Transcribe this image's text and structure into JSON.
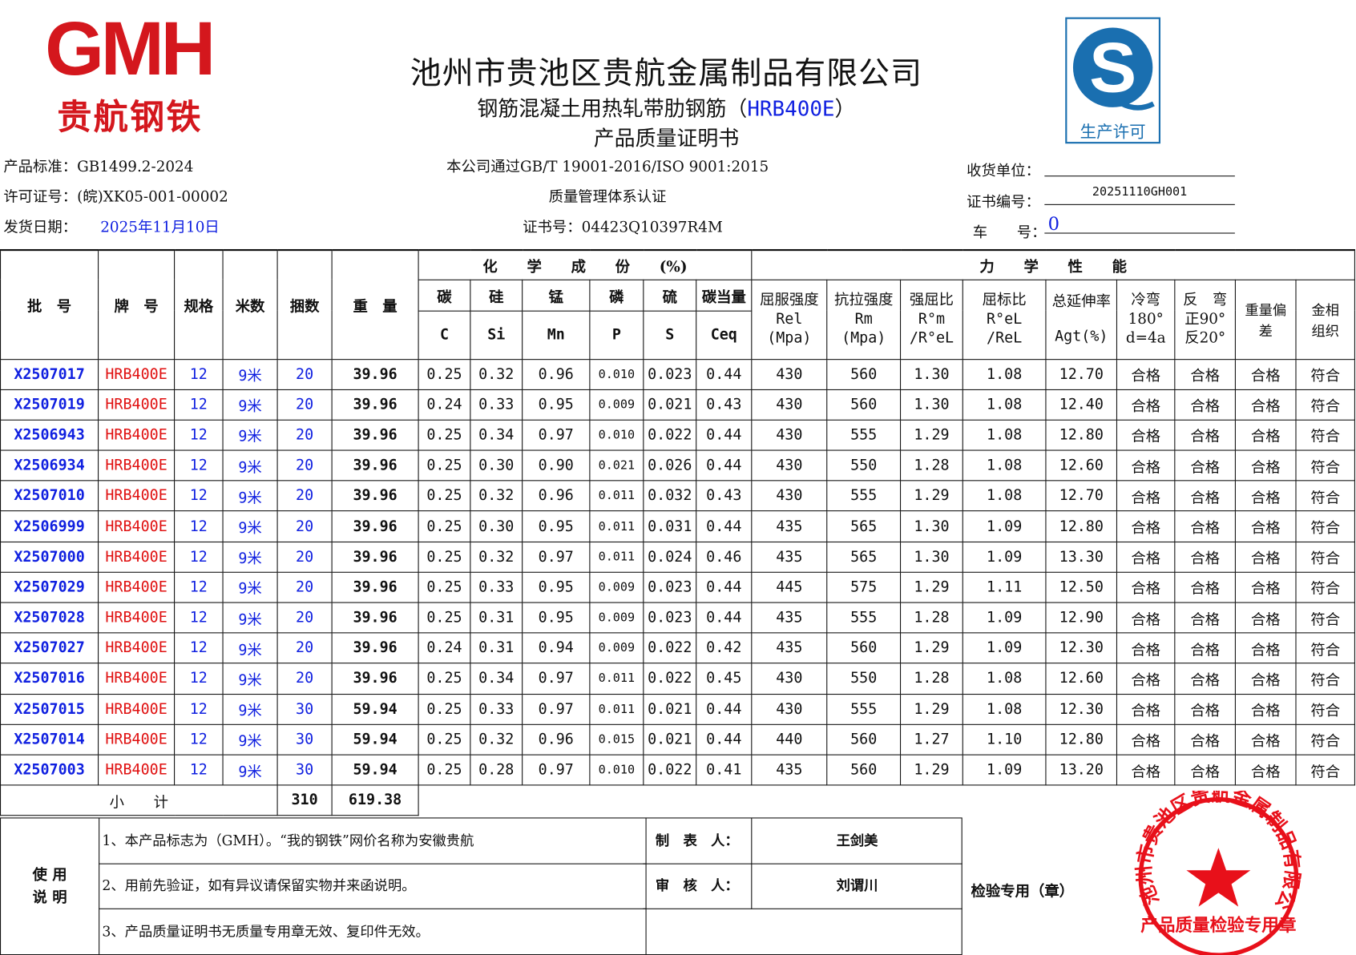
{
  "logo": {
    "letters": "GMH",
    "name": "贵航钢铁"
  },
  "header": {
    "company": "池州市贵池区贵航金属制品有限公司",
    "product_prefix": "钢筋混凝土用热轧带肋钢筋（",
    "grade": "HRB400E",
    "product_suffix": "）",
    "doc_title": "产品质量证明书"
  },
  "license_badge": {
    "label": "生产许可"
  },
  "info": {
    "standard": "产品标准：GB1499.2-2024",
    "license": "许可证号：(皖)XK05-001-00002",
    "ship_label": "发货日期：",
    "ship_date": "2025年11月10日",
    "cert_line1": "本公司通过GB/T 19001-2016/ISO 9001:2015",
    "cert_line2": "质量管理体系认证",
    "cert_no": "证书号：04423Q10397R4M",
    "consignee_label": "收货单位：",
    "consignee": "",
    "cert_code_label": "证书编号：",
    "cert_code": "20251110GH001",
    "vehicle_label": "车　　号：",
    "vehicle": "0"
  },
  "table": {
    "h": {
      "batch": "批　号",
      "brand": "牌　号",
      "spec": "规格",
      "length": "米数",
      "bundles": "捆数",
      "weight": "重　量",
      "chem": "化　　学　　成　　份　　(%)",
      "mech": "力　　学　　性　　能",
      "c": "碳",
      "si": "硅",
      "mn": "锰",
      "p": "磷",
      "s": "硫",
      "ceq": "碳当量",
      "c2": "C",
      "si2": "Si",
      "mn2": "Mn",
      "p2": "P",
      "s2": "S",
      "ceq2": "Ceq",
      "rel": "屈服强度",
      "rel2": "Rel",
      "rel3": "(Mpa)",
      "rm": "抗拉强度",
      "rm2": "Rm",
      "rm3": "(Mpa)",
      "ratio": "强屈比",
      "ratio2": "R°m",
      "ratio3": "/R°eL",
      "yr": "屈标比",
      "yr2": "R°eL",
      "yr3": "/ReL",
      "agt": "总延伸率",
      "agt2": "Agt(%)",
      "bend": "冷弯",
      "bend2": "180°",
      "bend3": "d=4a",
      "rbend": "反　弯",
      "rbend2": "正90°",
      "rbend3": "反20°",
      "wdev": "重量偏差",
      "micro": "金相组织"
    },
    "rows": [
      [
        "X2507017",
        "HRB400E",
        "12",
        "9米",
        "20",
        "39.96",
        "0.25",
        "0.32",
        "0.96",
        "0.010",
        "0.023",
        "0.44",
        "430",
        "560",
        "1.30",
        "1.08",
        "12.70",
        "合格",
        "合格",
        "合格",
        "符合"
      ],
      [
        "X2507019",
        "HRB400E",
        "12",
        "9米",
        "20",
        "39.96",
        "0.24",
        "0.33",
        "0.95",
        "0.009",
        "0.021",
        "0.43",
        "430",
        "560",
        "1.30",
        "1.08",
        "12.40",
        "合格",
        "合格",
        "合格",
        "符合"
      ],
      [
        "X2506943",
        "HRB400E",
        "12",
        "9米",
        "20",
        "39.96",
        "0.25",
        "0.34",
        "0.97",
        "0.010",
        "0.022",
        "0.44",
        "430",
        "555",
        "1.29",
        "1.08",
        "12.80",
        "合格",
        "合格",
        "合格",
        "符合"
      ],
      [
        "X2506934",
        "HRB400E",
        "12",
        "9米",
        "20",
        "39.96",
        "0.25",
        "0.30",
        "0.90",
        "0.021",
        "0.026",
        "0.44",
        "430",
        "550",
        "1.28",
        "1.08",
        "12.60",
        "合格",
        "合格",
        "合格",
        "符合"
      ],
      [
        "X2507010",
        "HRB400E",
        "12",
        "9米",
        "20",
        "39.96",
        "0.25",
        "0.32",
        "0.96",
        "0.011",
        "0.032",
        "0.43",
        "430",
        "555",
        "1.29",
        "1.08",
        "12.70",
        "合格",
        "合格",
        "合格",
        "符合"
      ],
      [
        "X2506999",
        "HRB400E",
        "12",
        "9米",
        "20",
        "39.96",
        "0.25",
        "0.30",
        "0.95",
        "0.011",
        "0.031",
        "0.44",
        "435",
        "565",
        "1.30",
        "1.09",
        "12.80",
        "合格",
        "合格",
        "合格",
        "符合"
      ],
      [
        "X2507000",
        "HRB400E",
        "12",
        "9米",
        "20",
        "39.96",
        "0.25",
        "0.32",
        "0.97",
        "0.011",
        "0.024",
        "0.46",
        "435",
        "565",
        "1.30",
        "1.09",
        "13.30",
        "合格",
        "合格",
        "合格",
        "符合"
      ],
      [
        "X2507029",
        "HRB400E",
        "12",
        "9米",
        "20",
        "39.96",
        "0.25",
        "0.33",
        "0.95",
        "0.009",
        "0.023",
        "0.44",
        "445",
        "575",
        "1.29",
        "1.11",
        "12.50",
        "合格",
        "合格",
        "合格",
        "符合"
      ],
      [
        "X2507028",
        "HRB400E",
        "12",
        "9米",
        "20",
        "39.96",
        "0.25",
        "0.31",
        "0.95",
        "0.009",
        "0.023",
        "0.44",
        "435",
        "555",
        "1.28",
        "1.09",
        "12.90",
        "合格",
        "合格",
        "合格",
        "符合"
      ],
      [
        "X2507027",
        "HRB400E",
        "12",
        "9米",
        "20",
        "39.96",
        "0.24",
        "0.31",
        "0.94",
        "0.009",
        "0.022",
        "0.42",
        "435",
        "560",
        "1.29",
        "1.09",
        "12.30",
        "合格",
        "合格",
        "合格",
        "符合"
      ],
      [
        "X2507016",
        "HRB400E",
        "12",
        "9米",
        "20",
        "39.96",
        "0.25",
        "0.34",
        "0.97",
        "0.011",
        "0.022",
        "0.45",
        "430",
        "550",
        "1.28",
        "1.08",
        "12.60",
        "合格",
        "合格",
        "合格",
        "符合"
      ],
      [
        "X2507015",
        "HRB400E",
        "12",
        "9米",
        "30",
        "59.94",
        "0.25",
        "0.33",
        "0.97",
        "0.011",
        "0.021",
        "0.44",
        "430",
        "555",
        "1.29",
        "1.08",
        "12.30",
        "合格",
        "合格",
        "合格",
        "符合"
      ],
      [
        "X2507014",
        "HRB400E",
        "12",
        "9米",
        "30",
        "59.94",
        "0.25",
        "0.32",
        "0.96",
        "0.015",
        "0.021",
        "0.44",
        "440",
        "560",
        "1.27",
        "1.10",
        "12.80",
        "合格",
        "合格",
        "合格",
        "符合"
      ],
      [
        "X2507003",
        "HRB400E",
        "12",
        "9米",
        "30",
        "59.94",
        "0.25",
        "0.28",
        "0.97",
        "0.010",
        "0.022",
        "0.41",
        "435",
        "560",
        "1.29",
        "1.09",
        "13.20",
        "合格",
        "合格",
        "合格",
        "符合"
      ]
    ],
    "subtotal": {
      "label": "小　　计",
      "bundles": "310",
      "weight": "619.38"
    }
  },
  "notes": {
    "label": "使 用\n说 明",
    "items": [
      "1、本产品标志为（GMH）。“我的钢铁”网价名称为安徽贵航",
      "2、用前先验证，如有异议请保留实物并来函说明。",
      "3、产品质量证明书无质量专用章无效、复印件无效。"
    ],
    "maker_label": "制　表　人：",
    "maker": "王剑美",
    "reviewer_label": "审　核　人：",
    "reviewer": "刘谓川",
    "inspector_label": "检验专用（章）"
  },
  "stamp": {
    "ring_text": "池州市贵池区贵航金属制品有限公司",
    "bottom_text": "产品质量检验专用章"
  },
  "colors": {
    "red": "#e01010",
    "blue": "#1020e0",
    "badge": "#1a6fb0"
  }
}
